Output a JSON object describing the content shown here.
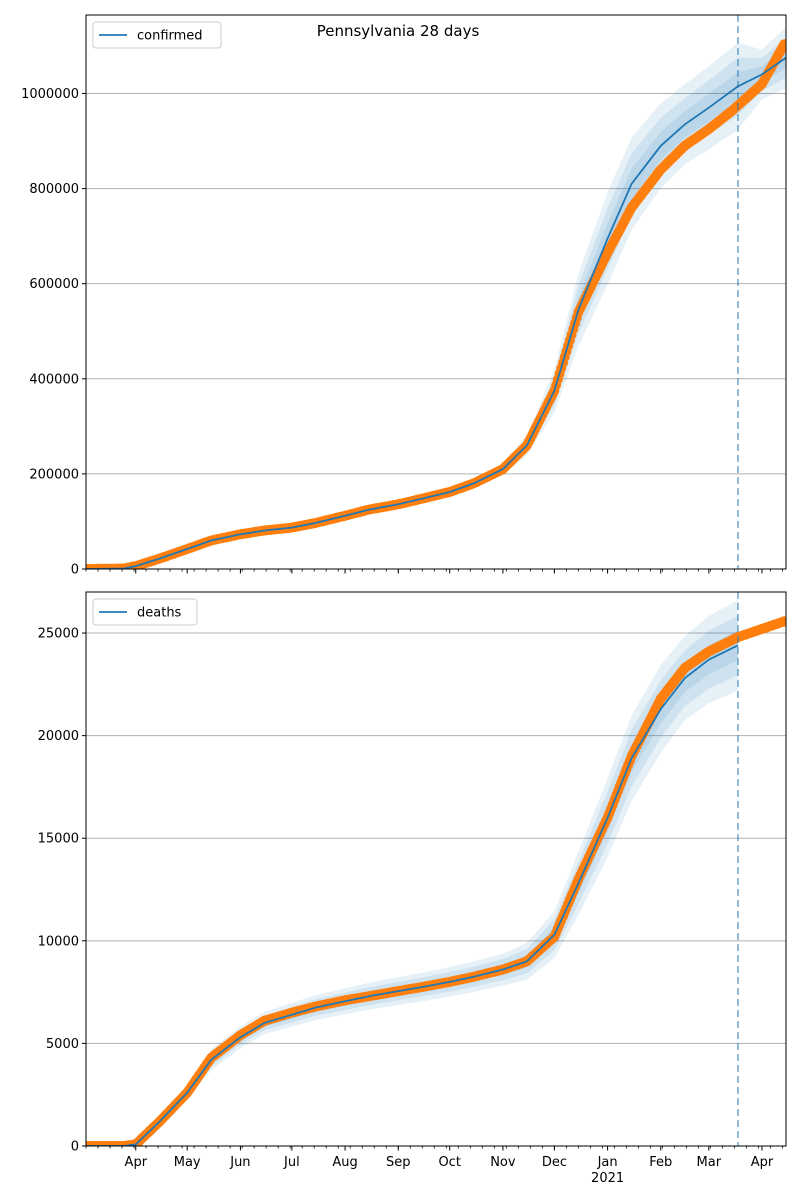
{
  "title": "Pennsylvania 28 days",
  "colors": {
    "model": "#1f77b4",
    "observed": "#ff7f0e",
    "grid": "#b0b0b0",
    "band": "#1f77b4"
  },
  "x_tick_labels": [
    "Apr",
    "May",
    "Jun",
    "Jul",
    "Aug",
    "Sep",
    "Oct",
    "Nov",
    "Dec",
    "Jan",
    "Feb",
    "Mar",
    "Apr"
  ],
  "x_year_label": "2021",
  "chart_data": [
    {
      "type": "line",
      "legend": "confirmed",
      "legend_position": "top-left",
      "grid": "horizontal",
      "xlim": [
        "2020-03-03",
        "2021-04-15"
      ],
      "ylim": [
        0,
        1165000
      ],
      "yticks": [
        0,
        200000,
        400000,
        600000,
        800000,
        1000000
      ],
      "ytick_labels": [
        "0",
        "200000",
        "400000",
        "600000",
        "800000",
        "1000000"
      ],
      "forecast_start": "2021-03-18",
      "observed": {
        "x": [
          "2020-03-03",
          "2020-03-25",
          "2020-04-01",
          "2020-04-15",
          "2020-05-01",
          "2020-05-15",
          "2020-06-01",
          "2020-06-15",
          "2020-07-01",
          "2020-07-15",
          "2020-08-01",
          "2020-08-15",
          "2020-09-01",
          "2020-09-15",
          "2020-10-01",
          "2020-10-15",
          "2020-11-01",
          "2020-11-15",
          "2020-12-01",
          "2020-12-15",
          "2021-01-01",
          "2021-01-15",
          "2021-02-01",
          "2021-02-15",
          "2021-03-01",
          "2021-03-15",
          "2021-04-01",
          "2021-04-15"
        ],
        "y": [
          0,
          1000,
          6000,
          22000,
          42000,
          60000,
          73000,
          81000,
          87000,
          97000,
          112000,
          125000,
          136000,
          148000,
          162000,
          180000,
          210000,
          260000,
          375000,
          540000,
          665000,
          760000,
          840000,
          890000,
          925000,
          965000,
          1020000,
          1110000
        ]
      },
      "model": {
        "x": [
          "2020-03-03",
          "2020-03-25",
          "2020-04-01",
          "2020-04-15",
          "2020-05-01",
          "2020-05-15",
          "2020-06-01",
          "2020-06-15",
          "2020-07-01",
          "2020-07-15",
          "2020-08-01",
          "2020-08-15",
          "2020-09-01",
          "2020-09-15",
          "2020-10-01",
          "2020-10-15",
          "2020-11-01",
          "2020-11-15",
          "2020-12-01",
          "2020-12-15",
          "2021-01-01",
          "2021-01-15",
          "2021-02-01",
          "2021-02-15",
          "2021-03-01",
          "2021-03-18",
          "2021-04-01",
          "2021-04-15"
        ],
        "y": [
          0,
          1000,
          6000,
          22000,
          42000,
          60000,
          73000,
          81000,
          87000,
          97000,
          112000,
          125000,
          136000,
          148000,
          162000,
          180000,
          210000,
          260000,
          375000,
          545000,
          695000,
          810000,
          890000,
          935000,
          970000,
          1015000,
          1040000,
          1075000
        ]
      },
      "band_width_ratio": [
        0.06,
        0.06,
        0.06,
        0.06,
        0.05,
        0.05,
        0.05,
        0.05,
        0.05,
        0.05,
        0.05,
        0.05,
        0.05,
        0.05,
        0.05,
        0.05,
        0.06,
        0.08,
        0.12,
        0.14,
        0.14,
        0.12,
        0.1,
        0.09,
        0.09,
        0.09,
        0.05,
        0.06
      ]
    },
    {
      "type": "line",
      "legend": "deaths",
      "legend_position": "top-left",
      "grid": "horizontal",
      "xlim": [
        "2020-03-03",
        "2021-04-15"
      ],
      "ylim": [
        0,
        27000
      ],
      "yticks": [
        0,
        5000,
        10000,
        15000,
        20000,
        25000
      ],
      "ytick_labels": [
        "0",
        "5000",
        "10000",
        "15000",
        "20000",
        "25000"
      ],
      "forecast_start": "2021-03-18",
      "observed": {
        "x": [
          "2020-03-03",
          "2020-03-25",
          "2020-04-01",
          "2020-04-15",
          "2020-05-01",
          "2020-05-15",
          "2020-06-01",
          "2020-06-15",
          "2020-07-01",
          "2020-07-15",
          "2020-08-01",
          "2020-08-15",
          "2020-09-01",
          "2020-09-15",
          "2020-10-01",
          "2020-10-15",
          "2020-11-01",
          "2020-11-15",
          "2020-12-01",
          "2020-12-15",
          "2021-01-01",
          "2021-01-15",
          "2021-02-01",
          "2021-02-15",
          "2021-03-01",
          "2021-03-18",
          "2021-04-01",
          "2021-04-15"
        ],
        "y": [
          0,
          0,
          80,
          1200,
          2600,
          4300,
          5400,
          6100,
          6500,
          6800,
          7100,
          7300,
          7550,
          7750,
          8000,
          8250,
          8600,
          9000,
          10200,
          13000,
          16000,
          19000,
          21800,
          23300,
          24100,
          24800,
          25200,
          25600
        ]
      },
      "model": {
        "x": [
          "2020-03-03",
          "2020-03-25",
          "2020-04-01",
          "2020-04-15",
          "2020-05-01",
          "2020-05-15",
          "2020-06-01",
          "2020-06-15",
          "2020-07-01",
          "2020-07-15",
          "2020-08-01",
          "2020-08-15",
          "2020-09-01",
          "2020-09-15",
          "2020-10-01",
          "2020-10-15",
          "2020-11-01",
          "2020-11-15",
          "2020-12-01",
          "2020-12-15",
          "2021-01-01",
          "2021-01-15",
          "2021-02-01",
          "2021-02-15",
          "2021-03-01",
          "2021-03-18"
        ],
        "y": [
          0,
          0,
          80,
          1200,
          2600,
          4200,
          5300,
          6000,
          6400,
          6750,
          7050,
          7300,
          7550,
          7750,
          8000,
          8250,
          8600,
          9000,
          10300,
          12800,
          16000,
          18900,
          21300,
          22800,
          23700,
          24400
        ]
      },
      "band_width_ratio": [
        0.08,
        0.08,
        0.08,
        0.1,
        0.12,
        0.12,
        0.1,
        0.09,
        0.09,
        0.09,
        0.09,
        0.09,
        0.09,
        0.09,
        0.09,
        0.09,
        0.09,
        0.1,
        0.11,
        0.12,
        0.12,
        0.11,
        0.1,
        0.09,
        0.09,
        0.09
      ]
    }
  ]
}
